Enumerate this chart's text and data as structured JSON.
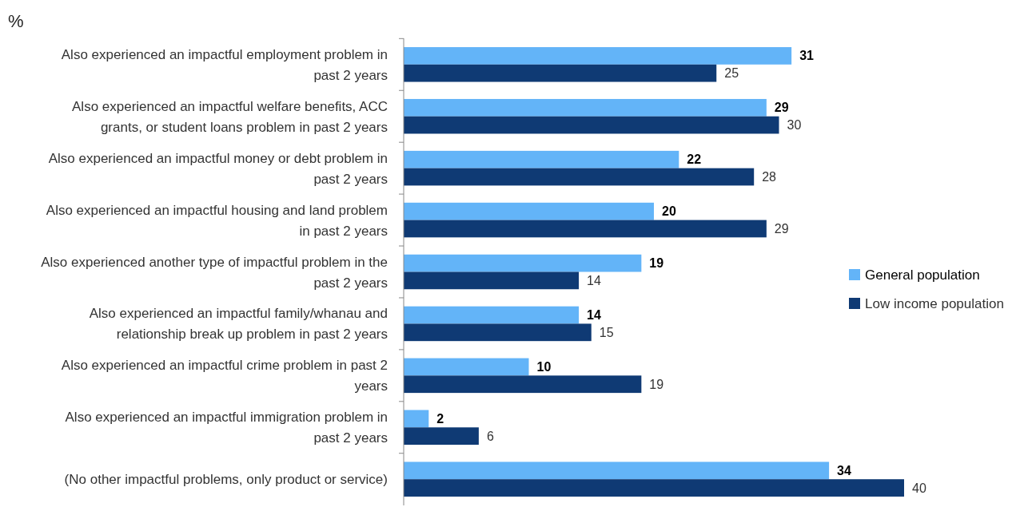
{
  "chart_data": {
    "type": "bar",
    "orientation": "horizontal",
    "title": "%",
    "categories": [
      "Also experienced an impactful employment problem in past 2 years",
      "Also experienced an impactful welfare benefits, ACC grants, or student loans problem in past 2 years",
      "Also experienced an impactful money or debt problem in past 2 years",
      "Also experienced an impactful housing and land problem in past 2 years",
      "Also experienced another type of impactful problem in the past 2 years",
      "Also experienced an impactful family/whanau and relationship break up problem in past 2 years",
      "Also experienced an impactful crime problem in past 2 years",
      "Also experienced an impactful immigration problem in past 2 years",
      "(No other impactful problems, only product or service)"
    ],
    "series": [
      {
        "name": "General population",
        "color": "#63b4f8",
        "values": [
          31,
          29,
          22,
          20,
          19,
          14,
          10,
          2,
          34
        ]
      },
      {
        "name": "Low income population",
        "color": "#0f3a74",
        "values": [
          25,
          30,
          28,
          29,
          14,
          15,
          19,
          6,
          40
        ]
      }
    ],
    "data_labels": true,
    "legend": "right"
  }
}
